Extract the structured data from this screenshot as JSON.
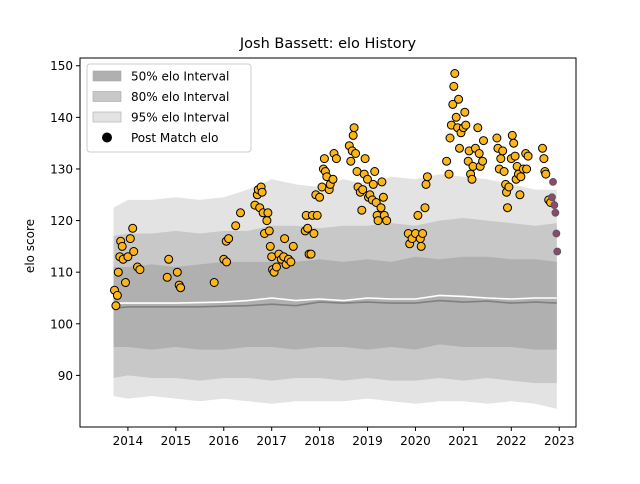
{
  "chart_data": {
    "type": "scatter",
    "title": "Josh Bassett: elo History",
    "xlabel": "",
    "ylabel": "elo score",
    "xlim": [
      2013.0,
      2023.35
    ],
    "ylim": [
      80.0,
      151.5
    ],
    "xticks": [
      2014,
      2015,
      2016,
      2017,
      2018,
      2019,
      2020,
      2021,
      2022,
      2023
    ],
    "yticks": [
      90,
      100,
      110,
      120,
      130,
      140,
      150
    ],
    "legend": {
      "position": "top-left",
      "items": [
        {
          "label": "50% elo Interval",
          "kind": "band50"
        },
        {
          "label": "80% elo Interval",
          "kind": "band80"
        },
        {
          "label": "95% elo Interval",
          "kind": "band95"
        },
        {
          "label": "Post Match elo",
          "kind": "dot"
        }
      ]
    },
    "colors": {
      "band50": "#b0b0b0",
      "band80": "#c8c8c8",
      "band95": "#e3e3e3",
      "median_line": "#808080",
      "mean_line": "#ffffff",
      "point_fill": "#fcb61a",
      "point_fill_recent": "#8a4a6e",
      "point_edge": "#000000"
    },
    "bands": {
      "x": [
        2013.7,
        2014.0,
        2014.5,
        2015.0,
        2015.5,
        2016.0,
        2016.5,
        2017.0,
        2017.5,
        2018.0,
        2018.5,
        2019.0,
        2019.5,
        2020.0,
        2020.5,
        2021.0,
        2021.5,
        2022.0,
        2022.5,
        2022.95
      ],
      "p95_hi": [
        122.5,
        124.0,
        124.0,
        124.5,
        124.0,
        124.5,
        126.0,
        128.0,
        127.0,
        126.5,
        128.0,
        127.0,
        128.5,
        128.0,
        129.0,
        128.5,
        128.0,
        127.0,
        126.0,
        126.0
      ],
      "p80_hi": [
        117.0,
        117.5,
        117.5,
        118.0,
        117.5,
        118.0,
        118.0,
        119.0,
        119.0,
        118.5,
        119.0,
        119.0,
        119.5,
        119.0,
        120.0,
        120.5,
        120.0,
        119.5,
        119.0,
        119.5
      ],
      "p50_hi": [
        111.0,
        111.0,
        111.5,
        111.0,
        111.5,
        112.0,
        112.0,
        112.0,
        112.0,
        112.5,
        112.0,
        112.5,
        112.0,
        113.0,
        112.5,
        113.0,
        113.0,
        112.5,
        112.5,
        112.0
      ],
      "median": [
        103.0,
        103.3,
        103.3,
        103.3,
        103.3,
        103.4,
        103.5,
        103.8,
        103.5,
        104.2,
        104.0,
        104.2,
        104.0,
        104.0,
        104.5,
        104.2,
        104.4,
        104.0,
        104.2,
        104.0
      ],
      "mean": [
        104.0,
        104.0,
        104.0,
        104.0,
        104.1,
        104.2,
        104.5,
        105.0,
        104.5,
        104.8,
        104.5,
        105.0,
        104.8,
        104.8,
        105.5,
        105.3,
        105.0,
        104.8,
        105.0,
        105.0
      ],
      "p50_lo": [
        95.5,
        95.5,
        95.0,
        95.5,
        95.0,
        95.0,
        95.5,
        95.5,
        95.0,
        95.5,
        95.5,
        95.0,
        95.5,
        95.0,
        96.0,
        95.5,
        95.5,
        95.5,
        95.0,
        95.0
      ],
      "p80_lo": [
        89.5,
        90.0,
        89.5,
        89.5,
        89.0,
        89.5,
        89.5,
        89.0,
        89.5,
        89.5,
        89.0,
        89.5,
        89.0,
        89.0,
        89.5,
        89.0,
        89.5,
        89.0,
        88.5,
        88.5
      ],
      "p95_lo": [
        86.0,
        85.5,
        86.0,
        85.5,
        85.0,
        85.5,
        85.0,
        84.5,
        85.0,
        85.0,
        85.0,
        85.5,
        85.0,
        84.5,
        85.0,
        85.0,
        84.5,
        85.0,
        84.5,
        83.5
      ]
    },
    "points": [
      {
        "x": 2013.72,
        "y": 106.5
      },
      {
        "x": 2013.75,
        "y": 103.5
      },
      {
        "x": 2013.78,
        "y": 105.5
      },
      {
        "x": 2013.8,
        "y": 110.0
      },
      {
        "x": 2013.83,
        "y": 113.0
      },
      {
        "x": 2013.85,
        "y": 116.0
      },
      {
        "x": 2013.88,
        "y": 115.0
      },
      {
        "x": 2013.9,
        "y": 112.5
      },
      {
        "x": 2013.95,
        "y": 108.0
      },
      {
        "x": 2014.0,
        "y": 113.0
      },
      {
        "x": 2014.05,
        "y": 116.5
      },
      {
        "x": 2014.1,
        "y": 118.5
      },
      {
        "x": 2014.12,
        "y": 114.0
      },
      {
        "x": 2014.2,
        "y": 111.0
      },
      {
        "x": 2014.25,
        "y": 110.5
      },
      {
        "x": 2014.82,
        "y": 109.0
      },
      {
        "x": 2014.85,
        "y": 112.5
      },
      {
        "x": 2015.03,
        "y": 110.0
      },
      {
        "x": 2015.07,
        "y": 107.5
      },
      {
        "x": 2015.1,
        "y": 107.0
      },
      {
        "x": 2015.8,
        "y": 108.0
      },
      {
        "x": 2016.0,
        "y": 112.5
      },
      {
        "x": 2016.05,
        "y": 116.0
      },
      {
        "x": 2016.1,
        "y": 116.5
      },
      {
        "x": 2016.06,
        "y": 112.0
      },
      {
        "x": 2016.25,
        "y": 119.0
      },
      {
        "x": 2016.35,
        "y": 121.5
      },
      {
        "x": 2016.65,
        "y": 123.0
      },
      {
        "x": 2016.7,
        "y": 125.0
      },
      {
        "x": 2016.72,
        "y": 126.0
      },
      {
        "x": 2016.75,
        "y": 122.5
      },
      {
        "x": 2016.78,
        "y": 126.5
      },
      {
        "x": 2016.8,
        "y": 125.5
      },
      {
        "x": 2016.82,
        "y": 121.5
      },
      {
        "x": 2016.85,
        "y": 117.5
      },
      {
        "x": 2016.9,
        "y": 120.0
      },
      {
        "x": 2016.92,
        "y": 121.5
      },
      {
        "x": 2016.95,
        "y": 118.0
      },
      {
        "x": 2016.97,
        "y": 115.0
      },
      {
        "x": 2017.0,
        "y": 113.0
      },
      {
        "x": 2017.02,
        "y": 110.5
      },
      {
        "x": 2017.05,
        "y": 110.0
      },
      {
        "x": 2017.1,
        "y": 111.0
      },
      {
        "x": 2017.15,
        "y": 113.5
      },
      {
        "x": 2017.2,
        "y": 112.5
      },
      {
        "x": 2017.25,
        "y": 113.0
      },
      {
        "x": 2017.27,
        "y": 116.5
      },
      {
        "x": 2017.3,
        "y": 111.5
      },
      {
        "x": 2017.35,
        "y": 112.5
      },
      {
        "x": 2017.4,
        "y": 112.0
      },
      {
        "x": 2017.45,
        "y": 115.0
      },
      {
        "x": 2017.7,
        "y": 118.0
      },
      {
        "x": 2017.72,
        "y": 121.0
      },
      {
        "x": 2017.75,
        "y": 118.5
      },
      {
        "x": 2017.78,
        "y": 113.5
      },
      {
        "x": 2017.82,
        "y": 113.5
      },
      {
        "x": 2017.85,
        "y": 121.0
      },
      {
        "x": 2017.88,
        "y": 117.5
      },
      {
        "x": 2017.92,
        "y": 125.0
      },
      {
        "x": 2017.95,
        "y": 121.0
      },
      {
        "x": 2018.0,
        "y": 124.5
      },
      {
        "x": 2018.05,
        "y": 126.5
      },
      {
        "x": 2018.08,
        "y": 130.0
      },
      {
        "x": 2018.1,
        "y": 132.0
      },
      {
        "x": 2018.12,
        "y": 129.5
      },
      {
        "x": 2018.15,
        "y": 128.5
      },
      {
        "x": 2018.2,
        "y": 126.0
      },
      {
        "x": 2018.22,
        "y": 127.0
      },
      {
        "x": 2018.28,
        "y": 128.0
      },
      {
        "x": 2018.3,
        "y": 133.0
      },
      {
        "x": 2018.35,
        "y": 132.0
      },
      {
        "x": 2018.62,
        "y": 134.5
      },
      {
        "x": 2018.65,
        "y": 131.5
      },
      {
        "x": 2018.68,
        "y": 133.5
      },
      {
        "x": 2018.7,
        "y": 136.5
      },
      {
        "x": 2018.72,
        "y": 138.0
      },
      {
        "x": 2018.75,
        "y": 133.0
      },
      {
        "x": 2018.78,
        "y": 129.5
      },
      {
        "x": 2018.8,
        "y": 126.5
      },
      {
        "x": 2018.85,
        "y": 125.5
      },
      {
        "x": 2018.88,
        "y": 122.0
      },
      {
        "x": 2018.9,
        "y": 126.0
      },
      {
        "x": 2018.93,
        "y": 129.0
      },
      {
        "x": 2018.95,
        "y": 132.0
      },
      {
        "x": 2019.0,
        "y": 128.0
      },
      {
        "x": 2019.02,
        "y": 124.5
      },
      {
        "x": 2019.05,
        "y": 125.0
      },
      {
        "x": 2019.1,
        "y": 124.0
      },
      {
        "x": 2019.12,
        "y": 127.0
      },
      {
        "x": 2019.15,
        "y": 129.5
      },
      {
        "x": 2019.18,
        "y": 123.5
      },
      {
        "x": 2019.2,
        "y": 121.0
      },
      {
        "x": 2019.22,
        "y": 120.0
      },
      {
        "x": 2019.28,
        "y": 122.5
      },
      {
        "x": 2019.3,
        "y": 127.5
      },
      {
        "x": 2019.33,
        "y": 124.5
      },
      {
        "x": 2019.35,
        "y": 121.0
      },
      {
        "x": 2019.4,
        "y": 120.0
      },
      {
        "x": 2019.85,
        "y": 117.5
      },
      {
        "x": 2019.88,
        "y": 115.5
      },
      {
        "x": 2019.93,
        "y": 116.5
      },
      {
        "x": 2020.0,
        "y": 117.5
      },
      {
        "x": 2020.05,
        "y": 121.0
      },
      {
        "x": 2020.1,
        "y": 116.5
      },
      {
        "x": 2020.12,
        "y": 115.0
      },
      {
        "x": 2020.15,
        "y": 117.5
      },
      {
        "x": 2020.2,
        "y": 122.5
      },
      {
        "x": 2020.22,
        "y": 127.0
      },
      {
        "x": 2020.25,
        "y": 128.5
      },
      {
        "x": 2020.65,
        "y": 131.5
      },
      {
        "x": 2020.7,
        "y": 129.0
      },
      {
        "x": 2020.72,
        "y": 136.0
      },
      {
        "x": 2020.75,
        "y": 138.5
      },
      {
        "x": 2020.78,
        "y": 142.5
      },
      {
        "x": 2020.8,
        "y": 146.0
      },
      {
        "x": 2020.82,
        "y": 148.5
      },
      {
        "x": 2020.85,
        "y": 140.0
      },
      {
        "x": 2020.88,
        "y": 138.0
      },
      {
        "x": 2020.9,
        "y": 143.5
      },
      {
        "x": 2020.92,
        "y": 134.0
      },
      {
        "x": 2020.95,
        "y": 137.0
      },
      {
        "x": 2021.0,
        "y": 138.0
      },
      {
        "x": 2021.03,
        "y": 141.0
      },
      {
        "x": 2021.05,
        "y": 138.5
      },
      {
        "x": 2021.1,
        "y": 131.5
      },
      {
        "x": 2021.12,
        "y": 133.5
      },
      {
        "x": 2021.15,
        "y": 129.0
      },
      {
        "x": 2021.18,
        "y": 128.0
      },
      {
        "x": 2021.2,
        "y": 130.5
      },
      {
        "x": 2021.25,
        "y": 134.0
      },
      {
        "x": 2021.3,
        "y": 138.0
      },
      {
        "x": 2021.33,
        "y": 133.0
      },
      {
        "x": 2021.35,
        "y": 130.5
      },
      {
        "x": 2021.4,
        "y": 131.5
      },
      {
        "x": 2021.42,
        "y": 135.5
      },
      {
        "x": 2021.7,
        "y": 136.0
      },
      {
        "x": 2021.72,
        "y": 134.0
      },
      {
        "x": 2021.75,
        "y": 130.0
      },
      {
        "x": 2021.78,
        "y": 132.0
      },
      {
        "x": 2021.82,
        "y": 133.5
      },
      {
        "x": 2021.85,
        "y": 129.5
      },
      {
        "x": 2021.88,
        "y": 127.0
      },
      {
        "x": 2021.9,
        "y": 125.5
      },
      {
        "x": 2021.92,
        "y": 122.5
      },
      {
        "x": 2021.95,
        "y": 126.5
      },
      {
        "x": 2022.0,
        "y": 132.0
      },
      {
        "x": 2022.02,
        "y": 136.5
      },
      {
        "x": 2022.05,
        "y": 135.0
      },
      {
        "x": 2022.08,
        "y": 132.5
      },
      {
        "x": 2022.1,
        "y": 128.0
      },
      {
        "x": 2022.12,
        "y": 130.5
      },
      {
        "x": 2022.15,
        "y": 129.0
      },
      {
        "x": 2022.18,
        "y": 125.0
      },
      {
        "x": 2022.2,
        "y": 128.5
      },
      {
        "x": 2022.25,
        "y": 130.0
      },
      {
        "x": 2022.3,
        "y": 133.0
      },
      {
        "x": 2022.32,
        "y": 130.0
      },
      {
        "x": 2022.35,
        "y": 132.5
      },
      {
        "x": 2022.65,
        "y": 134.0
      },
      {
        "x": 2022.68,
        "y": 132.0
      },
      {
        "x": 2022.7,
        "y": 129.5
      },
      {
        "x": 2022.72,
        "y": 129.0
      },
      {
        "x": 2022.78,
        "y": 124.0
      },
      {
        "x": 2022.82,
        "y": 123.5
      }
    ],
    "recent_points": [
      {
        "x": 2022.85,
        "y": 124.5
      },
      {
        "x": 2022.87,
        "y": 127.5
      },
      {
        "x": 2022.9,
        "y": 123.0
      },
      {
        "x": 2022.92,
        "y": 121.5
      },
      {
        "x": 2022.94,
        "y": 117.5
      },
      {
        "x": 2022.96,
        "y": 114.0
      }
    ]
  }
}
